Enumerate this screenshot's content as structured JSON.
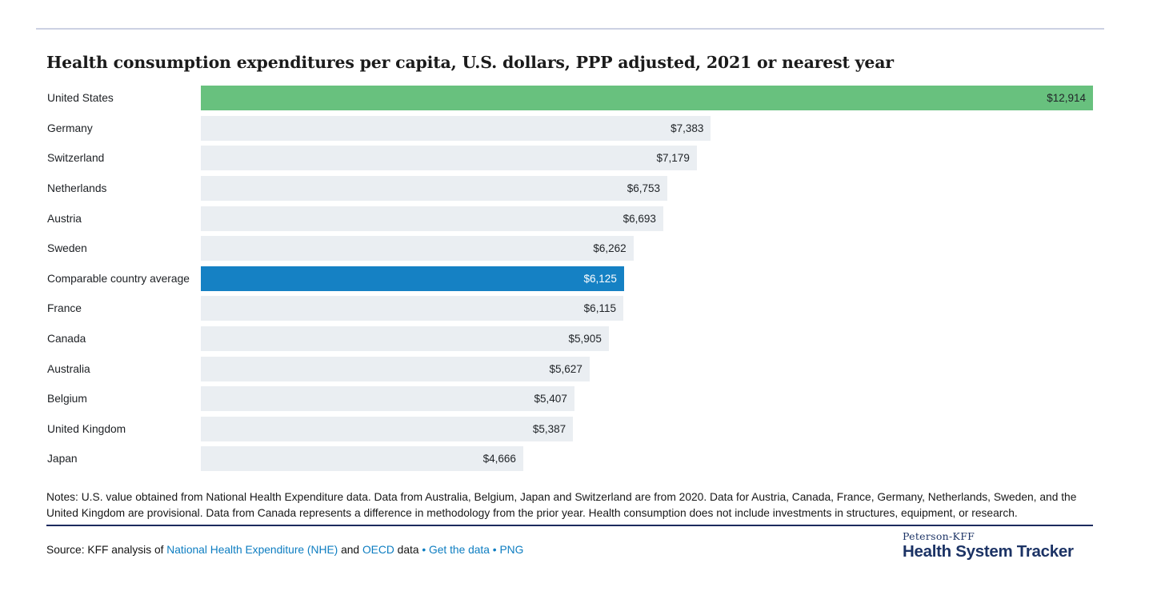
{
  "chart_data": {
    "type": "bar",
    "orientation": "horizontal",
    "title": "Health consumption expenditures per capita, U.S. dollars, PPP adjusted, 2021 or nearest year",
    "xlim": [
      0,
      12914
    ],
    "grid": false,
    "legend": "none",
    "value_labels_position": "inside-end",
    "rows": [
      {
        "label": "United States",
        "value": 12914,
        "display": "$12,914",
        "role": "us"
      },
      {
        "label": "Germany",
        "value": 7383,
        "display": "$7,383",
        "role": "default"
      },
      {
        "label": "Switzerland",
        "value": 7179,
        "display": "$7,179",
        "role": "default"
      },
      {
        "label": "Netherlands",
        "value": 6753,
        "display": "$6,753",
        "role": "default"
      },
      {
        "label": "Austria",
        "value": 6693,
        "display": "$6,693",
        "role": "default"
      },
      {
        "label": "Sweden",
        "value": 6262,
        "display": "$6,262",
        "role": "default"
      },
      {
        "label": "Comparable country average",
        "value": 6125,
        "display": "$6,125",
        "role": "average"
      },
      {
        "label": "France",
        "value": 6115,
        "display": "$6,115",
        "role": "default"
      },
      {
        "label": "Canada",
        "value": 5905,
        "display": "$5,905",
        "role": "default"
      },
      {
        "label": "Australia",
        "value": 5627,
        "display": "$5,627",
        "role": "default"
      },
      {
        "label": "Belgium",
        "value": 5407,
        "display": "$5,407",
        "role": "default"
      },
      {
        "label": "United Kingdom",
        "value": 5387,
        "display": "$5,387",
        "role": "default"
      },
      {
        "label": "Japan",
        "value": 4666,
        "display": "$4,666",
        "role": "default"
      }
    ]
  },
  "notes": "Notes: U.S. value obtained from National Health Expenditure data. Data from Australia, Belgium, Japan and Switzerland are from 2020. Data for Austria, Canada, France, Germany, Netherlands, Sweden, and the United Kingdom are provisional. Data from Canada represents a difference in methodology from the prior year. Health consumption does not include investments in structures, equipment, or research.",
  "source": {
    "parts": [
      {
        "text": "Source: KFF analysis of ",
        "type": "text"
      },
      {
        "text": "National Health Expenditure (NHE)",
        "type": "link"
      },
      {
        "text": " and ",
        "type": "text"
      },
      {
        "text": "OECD",
        "type": "link"
      },
      {
        "text": " data",
        "type": "text"
      },
      {
        "text": " • ",
        "type": "bullet"
      },
      {
        "text": "Get the data",
        "type": "link"
      },
      {
        "text": " • ",
        "type": "bullet"
      },
      {
        "text": "PNG",
        "type": "link"
      }
    ]
  },
  "logo": {
    "brand_top": "Peterson-KFF",
    "brand_bottom": "Health System Tracker"
  },
  "colors": {
    "us_bar": "#68c17e",
    "average_bar": "#1581c4",
    "default_bar": "#eaeef2",
    "bar_value_text": "#212529",
    "average_value_text": "#ffffff",
    "link_blue": "#0d7dc1",
    "brand_navy": "#1c3365",
    "separator_navy": "#1c2b5e",
    "topline_gray": "#ccd1e3"
  }
}
